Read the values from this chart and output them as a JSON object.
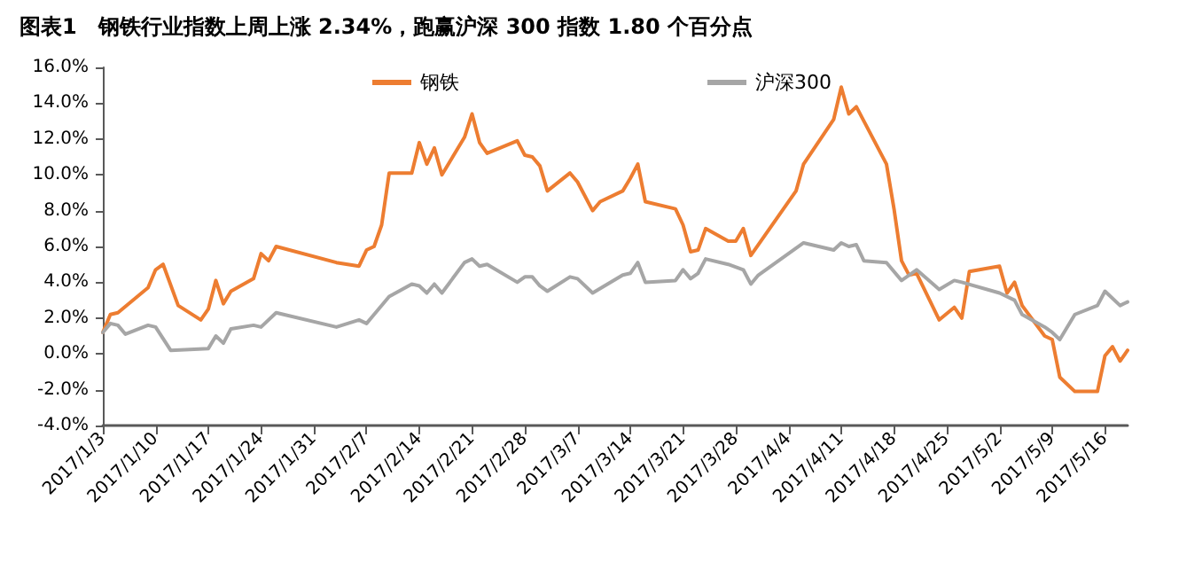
{
  "chart_data": {
    "type": "line",
    "title": "图表1　钢铁行业指数上周上涨 2.34%，跑赢沪深 300 指数 1.80 个百分点",
    "series": [
      {
        "name": "钢铁",
        "color": "#ed7d31",
        "x": [
          "2017-01-03",
          "2017-01-04",
          "2017-01-05",
          "2017-01-09",
          "2017-01-10",
          "2017-01-11",
          "2017-01-13",
          "2017-01-16",
          "2017-01-17",
          "2017-01-18",
          "2017-01-19",
          "2017-01-20",
          "2017-01-23",
          "2017-01-24",
          "2017-01-25",
          "2017-01-26",
          "2017-02-03",
          "2017-02-06",
          "2017-02-07",
          "2017-02-08",
          "2017-02-09",
          "2017-02-10",
          "2017-02-13",
          "2017-02-14",
          "2017-02-15",
          "2017-02-16",
          "2017-02-17",
          "2017-02-20",
          "2017-02-21",
          "2017-02-22",
          "2017-02-23",
          "2017-02-27",
          "2017-02-28",
          "2017-03-01",
          "2017-03-02",
          "2017-03-03",
          "2017-03-06",
          "2017-03-07",
          "2017-03-09",
          "2017-03-10",
          "2017-03-13",
          "2017-03-14",
          "2017-03-15",
          "2017-03-16",
          "2017-03-20",
          "2017-03-21",
          "2017-03-22",
          "2017-03-23",
          "2017-03-24",
          "2017-03-27",
          "2017-03-28",
          "2017-03-29",
          "2017-03-30",
          "2017-04-05",
          "2017-04-06",
          "2017-04-10",
          "2017-04-11",
          "2017-04-12",
          "2017-04-13",
          "2017-04-17",
          "2017-04-18",
          "2017-04-19",
          "2017-04-20",
          "2017-04-21",
          "2017-04-24",
          "2017-04-26",
          "2017-04-27",
          "2017-04-28",
          "2017-05-02",
          "2017-05-03",
          "2017-05-04",
          "2017-05-05",
          "2017-05-08",
          "2017-05-09",
          "2017-05-10",
          "2017-05-12",
          "2017-05-15",
          "2017-05-16",
          "2017-05-17",
          "2017-05-18",
          "2017-05-19"
        ],
        "values": [
          1.2,
          2.2,
          2.3,
          3.7,
          4.7,
          5.0,
          2.7,
          1.9,
          2.5,
          4.1,
          2.8,
          3.5,
          4.2,
          5.6,
          5.2,
          6.0,
          5.1,
          4.9,
          5.8,
          6.0,
          7.2,
          10.1,
          10.1,
          11.8,
          10.6,
          11.5,
          10.0,
          12.1,
          13.4,
          11.8,
          11.2,
          11.9,
          11.1,
          11.0,
          10.5,
          9.1,
          10.1,
          9.6,
          8.0,
          8.5,
          9.1,
          9.8,
          10.6,
          8.5,
          8.1,
          7.2,
          5.7,
          5.8,
          7.0,
          6.3,
          6.3,
          7.0,
          5.5,
          9.1,
          10.6,
          13.1,
          14.9,
          13.4,
          13.8,
          10.6,
          8.1,
          5.2,
          4.4,
          4.5,
          1.9,
          2.6,
          2.0,
          4.6,
          4.9,
          3.4,
          4.0,
          2.7,
          1.0,
          0.8,
          -1.3,
          -2.1,
          -2.1,
          -0.1,
          0.4,
          -0.4,
          0.2
        ]
      },
      {
        "name": "沪深300",
        "color": "#a6a6a6",
        "x": [
          "2017-01-03",
          "2017-01-04",
          "2017-01-05",
          "2017-01-06",
          "2017-01-09",
          "2017-01-10",
          "2017-01-12",
          "2017-01-17",
          "2017-01-18",
          "2017-01-19",
          "2017-01-20",
          "2017-01-23",
          "2017-01-24",
          "2017-01-26",
          "2017-02-03",
          "2017-02-06",
          "2017-02-07",
          "2017-02-08",
          "2017-02-10",
          "2017-02-13",
          "2017-02-14",
          "2017-02-15",
          "2017-02-16",
          "2017-02-17",
          "2017-02-20",
          "2017-02-21",
          "2017-02-22",
          "2017-02-23",
          "2017-02-27",
          "2017-02-28",
          "2017-03-01",
          "2017-03-02",
          "2017-03-03",
          "2017-03-06",
          "2017-03-07",
          "2017-03-09",
          "2017-03-13",
          "2017-03-14",
          "2017-03-15",
          "2017-03-16",
          "2017-03-20",
          "2017-03-21",
          "2017-03-22",
          "2017-03-23",
          "2017-03-24",
          "2017-03-27",
          "2017-03-29",
          "2017-03-30",
          "2017-03-31",
          "2017-04-06",
          "2017-04-10",
          "2017-04-11",
          "2017-04-12",
          "2017-04-13",
          "2017-04-14",
          "2017-04-17",
          "2017-04-19",
          "2017-04-21",
          "2017-04-24",
          "2017-04-26",
          "2017-04-27",
          "2017-05-02",
          "2017-05-04",
          "2017-05-05",
          "2017-05-08",
          "2017-05-09",
          "2017-05-10",
          "2017-05-12",
          "2017-05-15",
          "2017-05-16",
          "2017-05-18",
          "2017-05-19"
        ],
        "values": [
          1.2,
          1.7,
          1.6,
          1.1,
          1.6,
          1.5,
          0.2,
          0.3,
          1.0,
          0.6,
          1.4,
          1.6,
          1.5,
          2.3,
          1.5,
          1.9,
          1.7,
          2.2,
          3.2,
          3.9,
          3.8,
          3.4,
          3.9,
          3.4,
          5.1,
          5.3,
          4.9,
          5.0,
          4.0,
          4.3,
          4.3,
          3.8,
          3.5,
          4.3,
          4.2,
          3.4,
          4.4,
          4.5,
          5.1,
          4.0,
          4.1,
          4.7,
          4.2,
          4.5,
          5.3,
          5.0,
          4.7,
          3.9,
          4.4,
          6.2,
          5.8,
          6.2,
          6.0,
          6.1,
          5.2,
          5.1,
          4.1,
          4.7,
          3.6,
          4.1,
          4.0,
          3.4,
          3.0,
          2.2,
          1.5,
          1.2,
          0.8,
          2.2,
          2.7,
          3.5,
          2.7,
          2.9
        ]
      }
    ],
    "xlim": [
      "2017-01-03",
      "2017-05-19"
    ],
    "xticks": [
      {
        "value": "2017-01-03",
        "label": "2017/1/3"
      },
      {
        "value": "2017-01-10",
        "label": "2017/1/10"
      },
      {
        "value": "2017-01-17",
        "label": "2017/1/17"
      },
      {
        "value": "2017-01-24",
        "label": "2017/1/24"
      },
      {
        "value": "2017-01-31",
        "label": "2017/1/31"
      },
      {
        "value": "2017-02-07",
        "label": "2017/2/7"
      },
      {
        "value": "2017-02-14",
        "label": "2017/2/14"
      },
      {
        "value": "2017-02-21",
        "label": "2017/2/21"
      },
      {
        "value": "2017-02-28",
        "label": "2017/2/28"
      },
      {
        "value": "2017-03-07",
        "label": "2017/3/7"
      },
      {
        "value": "2017-03-14",
        "label": "2017/3/14"
      },
      {
        "value": "2017-03-21",
        "label": "2017/3/21"
      },
      {
        "value": "2017-03-28",
        "label": "2017/3/28"
      },
      {
        "value": "2017-04-04",
        "label": "2017/4/4"
      },
      {
        "value": "2017-04-11",
        "label": "2017/4/11"
      },
      {
        "value": "2017-04-18",
        "label": "2017/4/18"
      },
      {
        "value": "2017-04-25",
        "label": "2017/4/25"
      },
      {
        "value": "2017-05-02",
        "label": "2017/5/2"
      },
      {
        "value": "2017-05-09",
        "label": "2017/5/9"
      },
      {
        "value": "2017-05-16",
        "label": "2017/5/16"
      }
    ],
    "ylim": [
      -4,
      16
    ],
    "yticks": [
      {
        "value": -4,
        "label": "-4.0%"
      },
      {
        "value": -2,
        "label": "-2.0%"
      },
      {
        "value": 0,
        "label": "0.0%"
      },
      {
        "value": 2,
        "label": "2.0%"
      },
      {
        "value": 4,
        "label": "4.0%"
      },
      {
        "value": 6,
        "label": "6.0%"
      },
      {
        "value": 8,
        "label": "8.0%"
      },
      {
        "value": 10,
        "label": "10.0%"
      },
      {
        "value": 12,
        "label": "12.0%"
      },
      {
        "value": 14,
        "label": "14.0%"
      },
      {
        "value": 16,
        "label": "16.0%"
      }
    ],
    "grid": false,
    "legend": "top",
    "marker": "none",
    "line_style": "solid"
  }
}
